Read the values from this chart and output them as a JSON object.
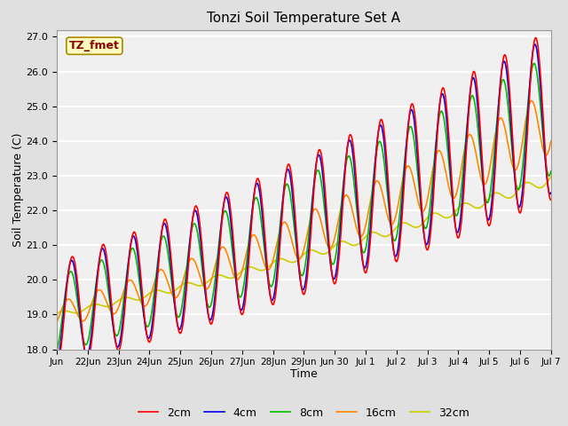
{
  "title": "Tonzi Soil Temperature Set A",
  "ylabel": "Soil Temperature (C)",
  "xlabel": "Time",
  "annotation_label": "TZ_fmet",
  "annotation_bg": "#FFFFC0",
  "annotation_border": "#AA8800",
  "ylim": [
    18.0,
    27.2
  ],
  "series": [
    {
      "label": "2cm",
      "color": "#FF0000",
      "depth_cm": 2
    },
    {
      "label": "4cm",
      "color": "#0000EE",
      "depth_cm": 4
    },
    {
      "label": "8cm",
      "color": "#00BB00",
      "depth_cm": 8
    },
    {
      "label": "16cm",
      "color": "#FF8800",
      "depth_cm": 16
    },
    {
      "label": "32cm",
      "color": "#CCCC00",
      "depth_cm": 32
    }
  ],
  "tick_labels": [
    "Jun",
    "22Jun",
    "23Jun",
    "24Jun",
    "25Jun",
    "26Jun",
    "27Jun",
    "28Jun",
    "29Jun",
    "Jun 30",
    "Jul 1",
    "Jul 2",
    "Jul 3",
    "Jul 4",
    "Jul 5",
    "Jul 6",
    "Jul 7"
  ],
  "bg_color": "#E0E0E0",
  "plot_bg_color": "#F0F0F0",
  "grid_color": "#FFFFFF",
  "linewidth": 1.2
}
